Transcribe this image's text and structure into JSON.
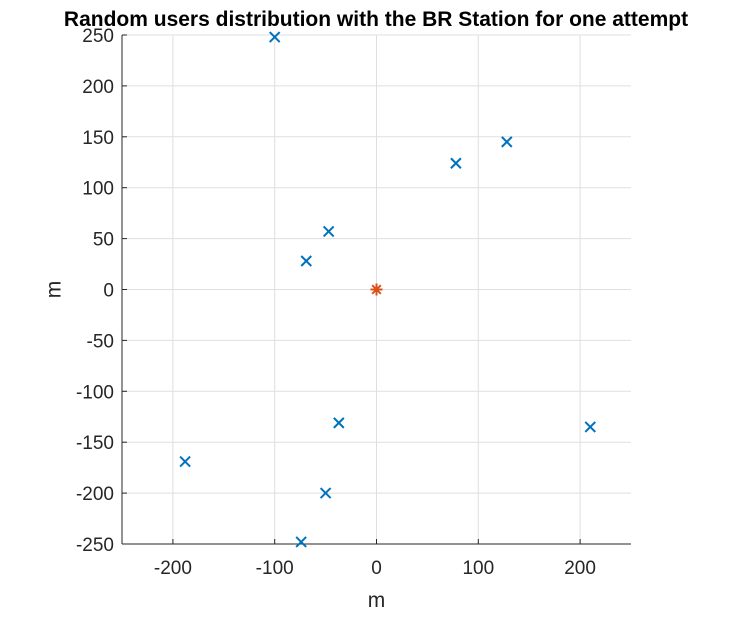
{
  "chart_data": {
    "type": "scatter",
    "title": "Random users distribution with the BR Station for one attempt",
    "xlabel": "m",
    "ylabel": "m",
    "xlim": [
      -250,
      250
    ],
    "ylim": [
      -250,
      250
    ],
    "xticks": [
      -200,
      -100,
      0,
      100,
      200
    ],
    "yticks": [
      250,
      200,
      150,
      100,
      50,
      0,
      -50,
      -100,
      -150,
      -200,
      -250
    ],
    "grid": true,
    "series": [
      {
        "marker": "x",
        "color": "#0072BD",
        "points": [
          {
            "x": -100,
            "y": 248
          },
          {
            "x": 128,
            "y": 145
          },
          {
            "x": 78,
            "y": 124
          },
          {
            "x": -47,
            "y": 57
          },
          {
            "x": -69,
            "y": 28
          },
          {
            "x": -37,
            "y": -131
          },
          {
            "x": 210,
            "y": -135
          },
          {
            "x": -188,
            "y": -169
          },
          {
            "x": -50,
            "y": -200
          },
          {
            "x": -74,
            "y": -248
          }
        ]
      },
      {
        "marker": "asterisk",
        "color": "#D95319",
        "points": [
          {
            "x": 0,
            "y": 0
          }
        ]
      }
    ]
  }
}
